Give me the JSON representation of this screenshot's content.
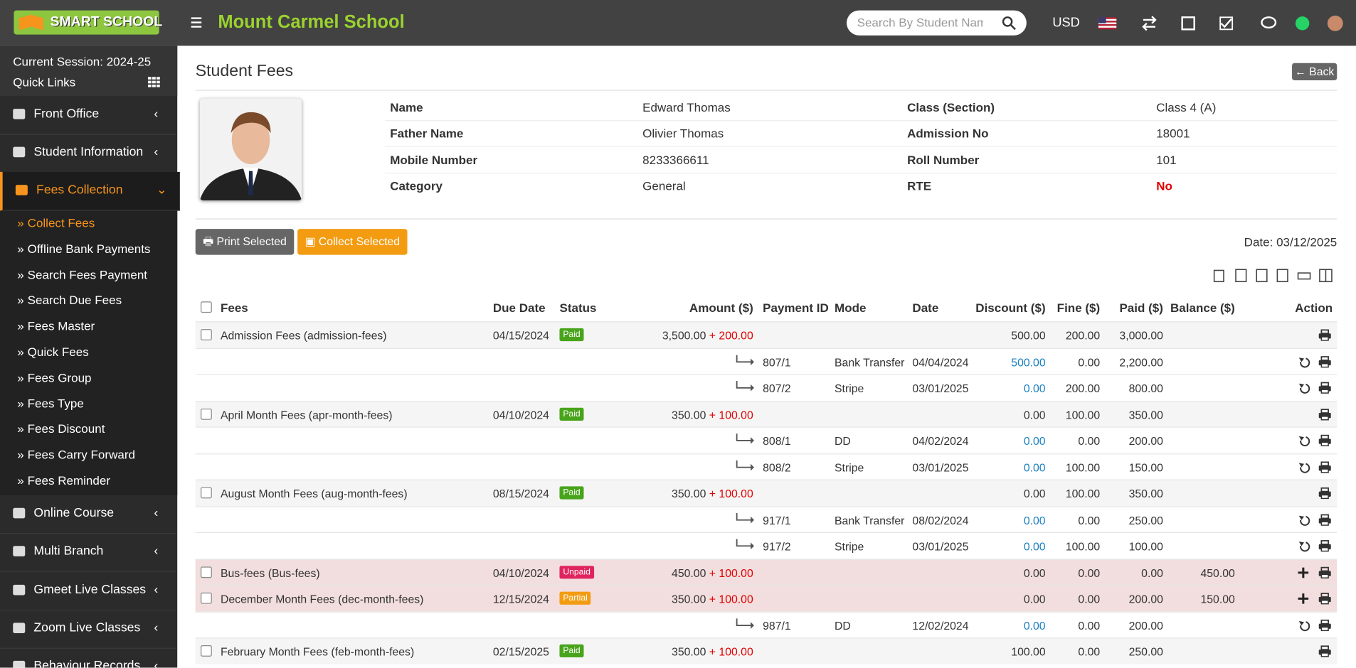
{
  "header": {
    "logo": "SMART SCHOOL",
    "school": "Mount Carmel School",
    "search_placeholder": "Search By Student Name",
    "currency": "USD"
  },
  "sidebar": {
    "session": "Current Session: 2024-25",
    "quick_links": "Quick Links",
    "menu_top": [
      "Front Office",
      "Student Information",
      "Fees Collection"
    ],
    "submenu": [
      "Collect Fees",
      "Offline Bank Payments",
      "Search Fees Payment",
      "Search Due Fees",
      "Fees Master",
      "Quick Fees",
      "Fees Group",
      "Fees Type",
      "Fees Discount",
      "Fees Carry Forward",
      "Fees Reminder"
    ],
    "menu_bottom": [
      "Online Course",
      "Multi Branch",
      "Gmeet Live Classes",
      "Zoom Live Classes",
      "Behaviour Records"
    ]
  },
  "page": {
    "title": "Student Fees",
    "back": "Back",
    "print_selected": "Print Selected",
    "collect_selected": "Collect Selected",
    "date": "Date: 03/12/2025"
  },
  "student": [
    [
      "Name",
      "Edward Thomas",
      "Class (Section)",
      "Class 4 (A)"
    ],
    [
      "Father Name",
      "Olivier Thomas",
      "Admission No",
      "18001"
    ],
    [
      "Mobile Number",
      "8233366611",
      "Roll Number",
      "101"
    ],
    [
      "Category",
      "General",
      "RTE",
      "No"
    ]
  ],
  "table": {
    "columns": [
      "Fees",
      "Due Date",
      "Status",
      "Amount ($)",
      "Payment ID",
      "Mode",
      "Date",
      "Discount ($)",
      "Fine ($)",
      "Paid ($)",
      "Balance ($)",
      "Action"
    ],
    "rows": [
      {
        "fees": "Admission Fees (admission-fees)",
        "due": "04/15/2024",
        "status": "Paid",
        "amount": "3,500.00",
        "fine_added": "+ 200.00",
        "discount": "500.00",
        "fine": "200.00",
        "paid": "3,000.00"
      },
      {
        "payment_id": "807/1",
        "mode": "Bank Transfer",
        "date": "04/04/2024",
        "discount": "500.00",
        "fine": "0.00",
        "paid": "2,200.00"
      },
      {
        "payment_id": "807/2",
        "mode": "Stripe",
        "date": "03/01/2025",
        "discount": "0.00",
        "fine": "200.00",
        "paid": "800.00"
      },
      {
        "fees": "April Month Fees (apr-month-fees)",
        "due": "04/10/2024",
        "status": "Paid",
        "amount": "350.00",
        "fine_added": "+ 100.00",
        "discount": "0.00",
        "fine": "100.00",
        "paid": "350.00"
      },
      {
        "payment_id": "808/1",
        "mode": "DD",
        "date": "04/02/2024",
        "discount": "0.00",
        "fine": "0.00",
        "paid": "200.00"
      },
      {
        "payment_id": "808/2",
        "mode": "Stripe",
        "date": "03/01/2025",
        "discount": "0.00",
        "fine": "100.00",
        "paid": "150.00"
      },
      {
        "fees": "August Month Fees (aug-month-fees)",
        "due": "08/15/2024",
        "status": "Paid",
        "amount": "350.00",
        "fine_added": "+ 100.00",
        "discount": "0.00",
        "fine": "100.00",
        "paid": "350.00"
      },
      {
        "payment_id": "917/1",
        "mode": "Bank Transfer",
        "date": "08/02/2024",
        "discount": "0.00",
        "fine": "0.00",
        "paid": "250.00"
      },
      {
        "payment_id": "917/2",
        "mode": "Stripe",
        "date": "03/01/2025",
        "discount": "0.00",
        "fine": "100.00",
        "paid": "100.00"
      },
      {
        "fees": "Bus-fees (Bus-fees)",
        "due": "04/10/2024",
        "status": "Unpaid",
        "amount": "450.00",
        "fine_added": "+ 100.00",
        "discount": "0.00",
        "fine": "0.00",
        "paid": "0.00",
        "balance": "450.00"
      },
      {
        "fees": "December Month Fees (dec-month-fees)",
        "due": "12/15/2024",
        "status": "Partial",
        "amount": "350.00",
        "fine_added": "+ 100.00",
        "discount": "0.00",
        "fine": "0.00",
        "paid": "200.00",
        "balance": "150.00"
      },
      {
        "payment_id": "987/1",
        "mode": "DD",
        "date": "12/02/2024",
        "discount": "0.00",
        "fine": "0.00",
        "paid": "200.00"
      },
      {
        "fees": "February Month Fees (feb-month-fees)",
        "due": "02/15/2025",
        "status": "Paid",
        "amount": "350.00",
        "fine_added": "+ 100.00",
        "discount": "100.00",
        "fine": "0.00",
        "paid": "250.00"
      }
    ]
  }
}
